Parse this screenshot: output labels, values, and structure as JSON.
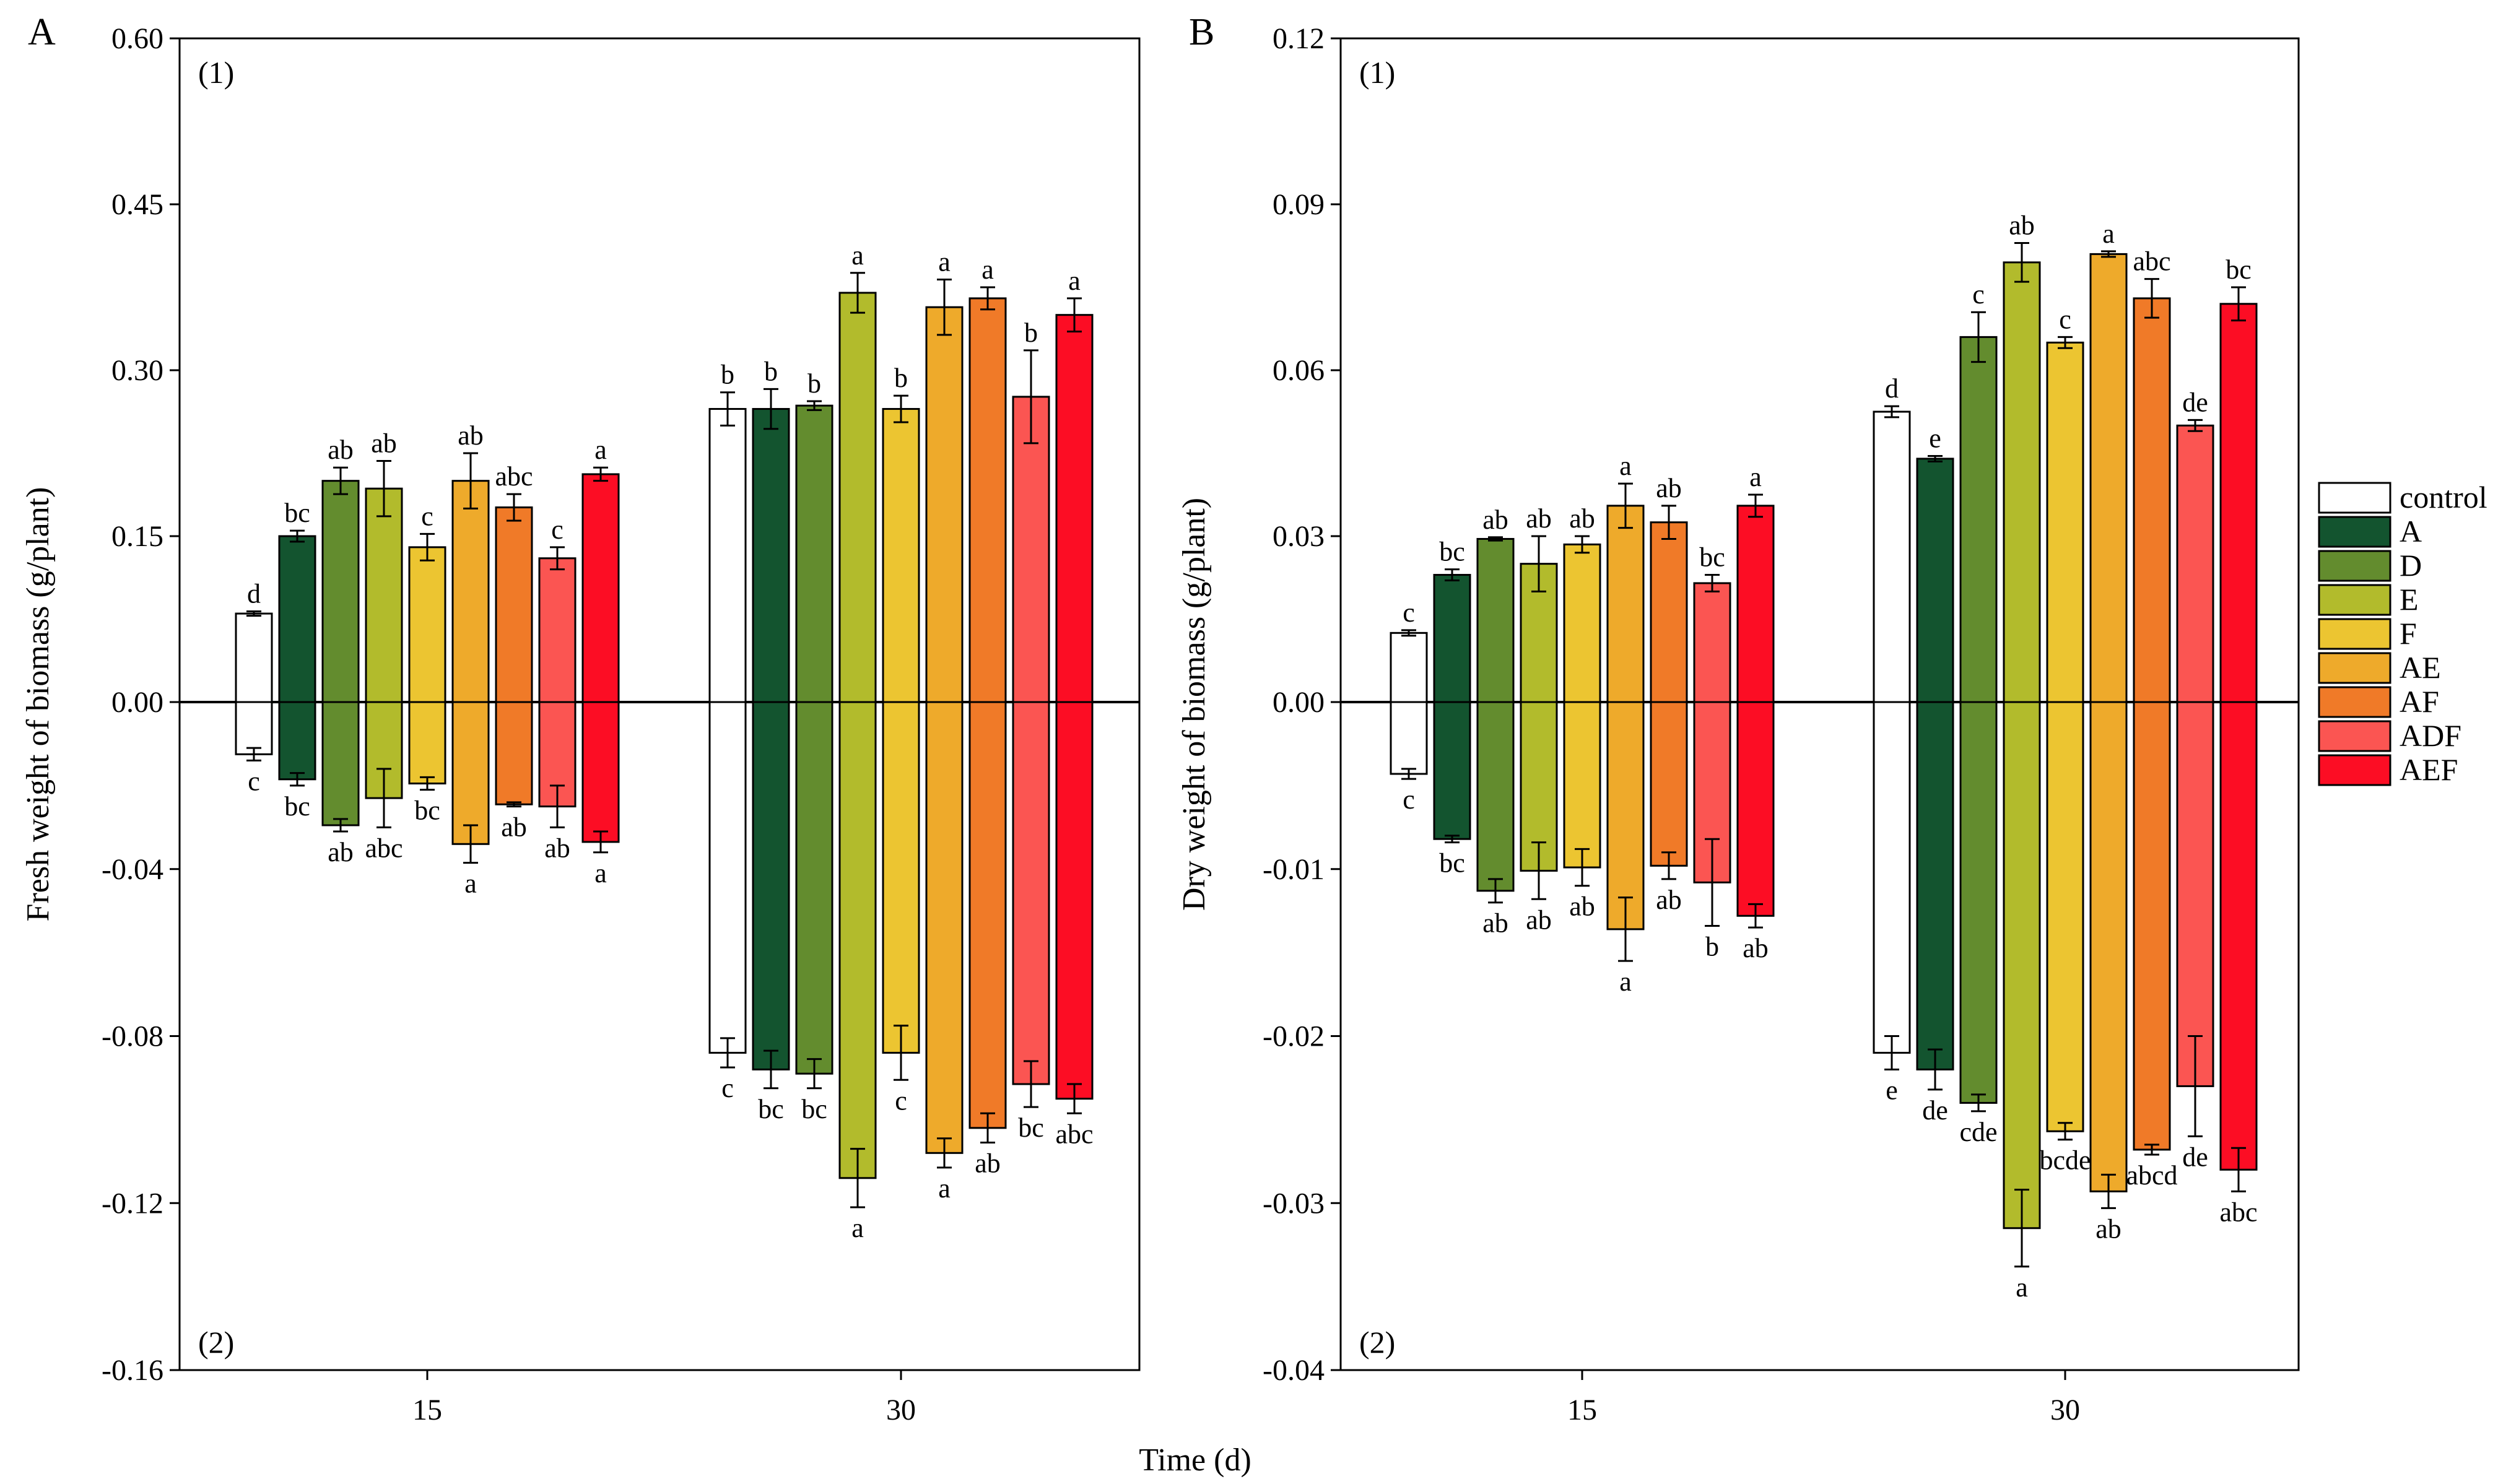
{
  "figure": {
    "x_axis_title": "Time (d)",
    "legend": {
      "placement": "right",
      "items": [
        {
          "label": "control",
          "color": "#ffffff"
        },
        {
          "label": "A",
          "color": "#13542f"
        },
        {
          "label": "D",
          "color": "#638c2e"
        },
        {
          "label": "E",
          "color": "#b2bb2c"
        },
        {
          "label": "F",
          "color": "#ecc531"
        },
        {
          "label": "AE",
          "color": "#eeaa2b"
        },
        {
          "label": "AF",
          "color": "#f07a28"
        },
        {
          "label": "ADF",
          "color": "#fb5552"
        },
        {
          "label": "AEF",
          "color": "#fc0d24"
        }
      ]
    }
  },
  "chart_data": [
    {
      "type": "bar",
      "panel": "A",
      "title": "",
      "ylabel": "Fresh weight of  biomass (g/plant)",
      "xlabel": "Time (d)",
      "subpanel_top": "(1)",
      "subpanel_bottom": "(2)",
      "categories": [
        "15",
        "30"
      ],
      "upper": {
        "ylim": [
          0,
          0.6
        ],
        "ticks": [
          "0.60",
          "0.45",
          "0.30",
          "0.15",
          "0.00"
        ],
        "tick_values": [
          0.6,
          0.45,
          0.3,
          0.15,
          0
        ],
        "series": [
          {
            "name": "control",
            "values": [
              0.08,
              0.265
            ],
            "errors": [
              0.002,
              0.015
            ],
            "labels": [
              "d",
              "b"
            ]
          },
          {
            "name": "A",
            "values": [
              0.15,
              0.265
            ],
            "errors": [
              0.005,
              0.018
            ],
            "labels": [
              "bc",
              "b"
            ]
          },
          {
            "name": "D",
            "values": [
              0.2,
              0.268
            ],
            "errors": [
              0.012,
              0.004
            ],
            "labels": [
              "ab",
              "b"
            ]
          },
          {
            "name": "E",
            "values": [
              0.193,
              0.37
            ],
            "errors": [
              0.025,
              0.018
            ],
            "labels": [
              "ab",
              "a"
            ]
          },
          {
            "name": "F",
            "values": [
              0.14,
              0.265
            ],
            "errors": [
              0.012,
              0.012
            ],
            "labels": [
              "c",
              "b"
            ]
          },
          {
            "name": "AE",
            "values": [
              0.2,
              0.357
            ],
            "errors": [
              0.025,
              0.025
            ],
            "labels": [
              "ab",
              "a"
            ]
          },
          {
            "name": "AF",
            "values": [
              0.176,
              0.365
            ],
            "errors": [
              0.012,
              0.01
            ],
            "labels": [
              "abc",
              "a"
            ]
          },
          {
            "name": "ADF",
            "values": [
              0.13,
              0.276
            ],
            "errors": [
              0.01,
              0.042
            ],
            "labels": [
              "c",
              "b"
            ]
          },
          {
            "name": "AEF",
            "values": [
              0.206,
              0.35
            ],
            "errors": [
              0.006,
              0.015
            ],
            "labels": [
              "a",
              "a"
            ]
          }
        ]
      },
      "lower": {
        "ylim": [
          0,
          -0.16
        ],
        "ticks": [
          "-0.04",
          "-0.08",
          "-0.12",
          "-0.16"
        ],
        "tick_values": [
          -0.04,
          -0.08,
          -0.12,
          -0.16
        ],
        "series": [
          {
            "name": "control",
            "values": [
              -0.0125,
              -0.084
            ],
            "errors": [
              0.0015,
              0.0035
            ],
            "labels": [
              "c",
              "c"
            ]
          },
          {
            "name": "A",
            "values": [
              -0.0185,
              -0.088
            ],
            "errors": [
              0.0015,
              0.0045
            ],
            "labels": [
              "bc",
              "bc"
            ]
          },
          {
            "name": "D",
            "values": [
              -0.0295,
              -0.089
            ],
            "errors": [
              0.0015,
              0.0035
            ],
            "labels": [
              "ab",
              "bc"
            ]
          },
          {
            "name": "E",
            "values": [
              -0.023,
              -0.114
            ],
            "errors": [
              0.007,
              0.007
            ],
            "labels": [
              "abc",
              "a"
            ]
          },
          {
            "name": "F",
            "values": [
              -0.0195,
              -0.084
            ],
            "errors": [
              0.0015,
              0.0065
            ],
            "labels": [
              "bc",
              "c"
            ]
          },
          {
            "name": "AE",
            "values": [
              -0.034,
              -0.108
            ],
            "errors": [
              0.0045,
              0.0035
            ],
            "labels": [
              "a",
              "a"
            ]
          },
          {
            "name": "AF",
            "values": [
              -0.0245,
              -0.102
            ],
            "errors": [
              0.0005,
              0.0035
            ],
            "labels": [
              "ab",
              "ab"
            ]
          },
          {
            "name": "ADF",
            "values": [
              -0.025,
              -0.0915
            ],
            "errors": [
              0.005,
              0.0055
            ],
            "labels": [
              "ab",
              "bc"
            ]
          },
          {
            "name": "AEF",
            "values": [
              -0.0335,
              -0.095
            ],
            "errors": [
              0.0025,
              0.0035
            ],
            "labels": [
              "a",
              "abc"
            ]
          }
        ]
      }
    },
    {
      "type": "bar",
      "panel": "B",
      "title": "",
      "ylabel": "Dry weight of  biomass (g/plant)",
      "xlabel": "Time (d)",
      "subpanel_top": "(1)",
      "subpanel_bottom": "(2)",
      "categories": [
        "15",
        "30"
      ],
      "upper": {
        "ylim": [
          0,
          0.12
        ],
        "ticks": [
          "0.12",
          "0.09",
          "0.06",
          "0.03",
          "0.00"
        ],
        "tick_values": [
          0.12,
          0.09,
          0.06,
          0.03,
          0
        ],
        "series": [
          {
            "name": "control",
            "values": [
              0.0125,
              0.0525
            ],
            "errors": [
              0.0005,
              0.001
            ],
            "labels": [
              "c",
              "d"
            ]
          },
          {
            "name": "A",
            "values": [
              0.023,
              0.044
            ],
            "errors": [
              0.001,
              0.0005
            ],
            "labels": [
              "bc",
              "e"
            ]
          },
          {
            "name": "D",
            "values": [
              0.0295,
              0.066
            ],
            "errors": [
              0.0003,
              0.0045
            ],
            "labels": [
              "ab",
              "c"
            ]
          },
          {
            "name": "E",
            "values": [
              0.025,
              0.0795
            ],
            "errors": [
              0.005,
              0.0035
            ],
            "labels": [
              "ab",
              "ab"
            ]
          },
          {
            "name": "F",
            "values": [
              0.0285,
              0.065
            ],
            "errors": [
              0.0015,
              0.001
            ],
            "labels": [
              "ab",
              "c"
            ]
          },
          {
            "name": "AE",
            "values": [
              0.0355,
              0.081
            ],
            "errors": [
              0.004,
              0.0005
            ],
            "labels": [
              "a",
              "a"
            ]
          },
          {
            "name": "AF",
            "values": [
              0.0325,
              0.073
            ],
            "errors": [
              0.003,
              0.0035
            ],
            "labels": [
              "ab",
              "abc"
            ]
          },
          {
            "name": "ADF",
            "values": [
              0.0215,
              0.05
            ],
            "errors": [
              0.0015,
              0.001
            ],
            "labels": [
              "bc",
              "de"
            ]
          },
          {
            "name": "AEF",
            "values": [
              0.0355,
              0.072
            ],
            "errors": [
              0.002,
              0.003
            ],
            "labels": [
              "a",
              "bc"
            ]
          }
        ]
      },
      "lower": {
        "ylim": [
          0,
          -0.04
        ],
        "ticks": [
          "-0.01",
          "-0.02",
          "-0.03",
          "-0.04"
        ],
        "tick_values": [
          -0.01,
          -0.02,
          -0.03,
          -0.04
        ],
        "series": [
          {
            "name": "control",
            "values": [
              -0.0043,
              -0.021
            ],
            "errors": [
              0.0003,
              0.001
            ],
            "labels": [
              "c",
              "e"
            ]
          },
          {
            "name": "A",
            "values": [
              -0.0082,
              -0.022
            ],
            "errors": [
              0.0002,
              0.0012
            ],
            "labels": [
              "bc",
              "de"
            ]
          },
          {
            "name": "D",
            "values": [
              -0.0113,
              -0.024
            ],
            "errors": [
              0.0007,
              0.0005
            ],
            "labels": [
              "ab",
              "cde"
            ]
          },
          {
            "name": "E",
            "values": [
              -0.0101,
              -0.0315
            ],
            "errors": [
              0.0017,
              0.0023
            ],
            "labels": [
              "ab",
              "a"
            ]
          },
          {
            "name": "F",
            "values": [
              -0.0099,
              -0.0257
            ],
            "errors": [
              0.0011,
              0.0005
            ],
            "labels": [
              "ab",
              "bcde"
            ]
          },
          {
            "name": "AE",
            "values": [
              -0.0136,
              -0.0293
            ],
            "errors": [
              0.0019,
              0.001
            ],
            "labels": [
              "a",
              "ab"
            ]
          },
          {
            "name": "AF",
            "values": [
              -0.0098,
              -0.0268
            ],
            "errors": [
              0.0008,
              0.0003
            ],
            "labels": [
              "ab",
              "abcd"
            ]
          },
          {
            "name": "ADF",
            "values": [
              -0.0108,
              -0.023
            ],
            "errors": [
              0.0026,
              0.003
            ],
            "labels": [
              "b",
              "de"
            ]
          },
          {
            "name": "AEF",
            "values": [
              -0.0128,
              -0.028
            ],
            "errors": [
              0.0007,
              0.0013
            ],
            "labels": [
              "ab",
              "abc"
            ]
          }
        ]
      }
    }
  ]
}
